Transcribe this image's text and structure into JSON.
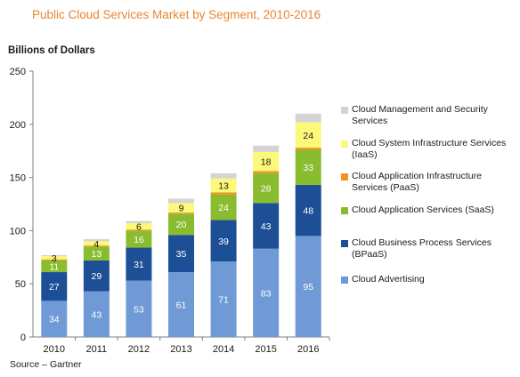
{
  "title": "Public Cloud Services Market by Segment, 2010-2016",
  "y_units": "Billions of Dollars",
  "source": "Source – Gartner",
  "chart_data": {
    "type": "bar",
    "stacked": true,
    "categories": [
      "2010",
      "2011",
      "2012",
      "2013",
      "2014",
      "2015",
      "2016"
    ],
    "ylim": [
      0,
      250
    ],
    "yticks": [
      0,
      50,
      100,
      150,
      200,
      250
    ],
    "legend_placement": "right",
    "series": [
      {
        "name": "Cloud Advertising",
        "color": "#6f9ad6",
        "label_color": "#ffffff",
        "values": [
          34,
          43,
          53,
          61,
          71,
          83,
          95
        ],
        "labels": [
          "34",
          "43",
          "53",
          "61",
          "71",
          "83",
          "95"
        ]
      },
      {
        "name": "Cloud Business Process Services (BPaaS)",
        "color": "#1c4f96",
        "label_color": "#ffffff",
        "values": [
          27,
          29,
          31,
          35,
          39,
          43,
          48
        ],
        "labels": [
          "27",
          "29",
          "31",
          "35",
          "39",
          "43",
          "48"
        ]
      },
      {
        "name": "Cloud Application Services (SaaS)",
        "color": "#8abc2f",
        "label_color": "#ffffff",
        "values": [
          11,
          13,
          16,
          20,
          24,
          28,
          33
        ],
        "labels": [
          "11",
          "13",
          "16",
          "20",
          "24",
          "28",
          "33"
        ]
      },
      {
        "name": "Cloud Application Infrastructure Services (PaaS)",
        "color": "#f0941e",
        "label_color": "#1a1a1a",
        "values": [
          1,
          1,
          1,
          1,
          2,
          2,
          2
        ],
        "labels": [
          "",
          "",
          "",
          "",
          "",
          "",
          ""
        ]
      },
      {
        "name": "Cloud System Infrastructure Services (IaaS)",
        "color": "#fcf87a",
        "label_color": "#1a1a1a",
        "values": [
          3,
          4,
          6,
          9,
          13,
          18,
          24
        ],
        "labels": [
          "3",
          "4",
          "6",
          "9",
          "13",
          "18",
          "24"
        ]
      },
      {
        "name": "Cloud Management and Security Services",
        "color": "#d4d4d4",
        "label_color": "#1a1a1a",
        "values": [
          1,
          2,
          2,
          4,
          5,
          6,
          8
        ],
        "labels": [
          "",
          "",
          "",
          "",
          "",
          "",
          ""
        ]
      }
    ]
  },
  "legend": [
    {
      "lines": [
        "Cloud Management and Security",
        "Services"
      ],
      "color": "#d4d4d4"
    },
    {
      "lines": [
        "Cloud System Infrastructure Services",
        "(IaaS)"
      ],
      "color": "#fcf87a"
    },
    {
      "lines": [
        "Cloud Application  Infrastructure",
        "Services (PaaS)"
      ],
      "color": "#f0941e"
    },
    {
      "lines": [
        "Cloud Application  Services (SaaS)"
      ],
      "color": "#8abc2f"
    },
    {
      "lines": [
        "Cloud Business Process Services",
        "(BPaaS)"
      ],
      "color": "#1c4f96"
    },
    {
      "lines": [
        "Cloud Advertising"
      ],
      "color": "#6f9ad6"
    }
  ]
}
